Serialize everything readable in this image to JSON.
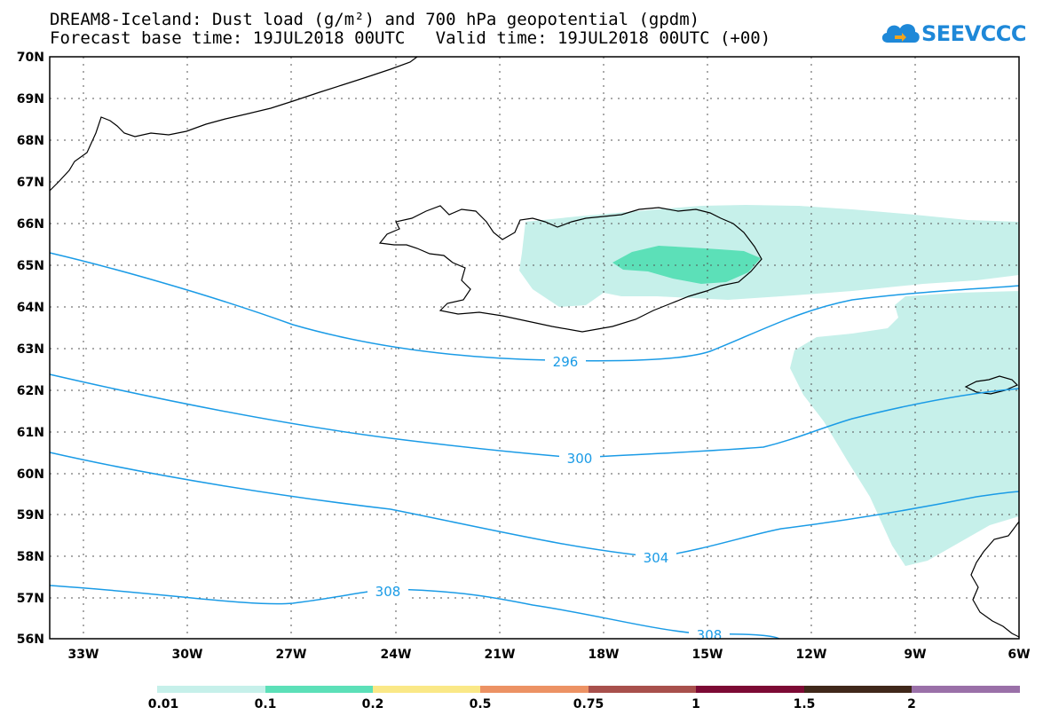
{
  "title": {
    "line1": "DREAM8-Iceland: Dust load (g/m²) and 700 hPa geopotential (gpdm)",
    "line2": "Forecast base time: 19JUL2018 00UTC   Valid time: 19JUL2018 00UTC (+00)"
  },
  "logo": {
    "text": "SEEVCCC",
    "icon": "cloud-arrow-icon"
  },
  "axes": {
    "lat_labels": [
      "70N",
      "69N",
      "68N",
      "67N",
      "66N",
      "65N",
      "64N",
      "63N",
      "62N",
      "61N",
      "60N",
      "59N",
      "58N",
      "57N",
      "56N"
    ],
    "lon_labels": [
      "33W",
      "30W",
      "27W",
      "24W",
      "21W",
      "18W",
      "15W",
      "12W",
      "9W",
      "6W"
    ]
  },
  "contours": [
    {
      "value": "296"
    },
    {
      "value": "300"
    },
    {
      "value": "304"
    },
    {
      "value": "308"
    },
    {
      "value": "308"
    }
  ],
  "colorbar": {
    "labels": [
      "0.01",
      "0.1",
      "0.2",
      "0.5",
      "0.75",
      "1",
      "1.5",
      "2"
    ],
    "colors": [
      "#c6f0ea",
      "#5ce0b8",
      "#fae887",
      "#ec9264",
      "#a8504c",
      "#7c0a34",
      "#40281a",
      "#9a70a8"
    ]
  },
  "colors": {
    "contour": "#1a9be6",
    "dust_low": "#c6f0ea",
    "dust_mid": "#5ce0b8"
  }
}
